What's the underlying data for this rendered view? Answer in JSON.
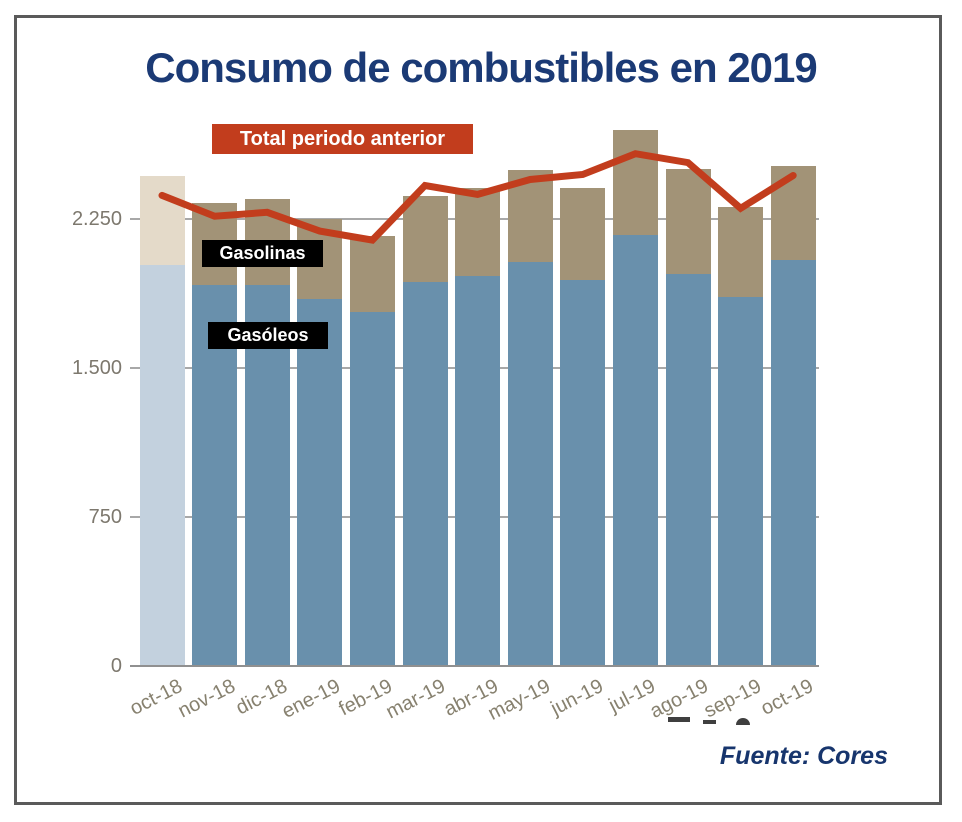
{
  "title": "Consumo de combustibles en 2019",
  "source": "Fuente: Cores",
  "legend": {
    "line_label": "Total periodo anterior",
    "gasolinas_label": "Gasolinas",
    "gasoleos_label": "Gasóleos"
  },
  "colors": {
    "title_text": "#1b3a75",
    "source_text": "#17356d",
    "legend_line_bg": "#c23d1d",
    "tag_bg": "#000000",
    "tag_text": "#ffffff",
    "gridline": "#a8a8a8",
    "baseline": "#909090",
    "y_label_text": "#7d786e",
    "x_label_text": "#87816f",
    "gasoleos_bar": "#6990ac",
    "gasolinas_bar": "#a29377",
    "gasoleos_bar_first": "#c3d1de",
    "gasolinas_bar_first": "#e4dac9",
    "line": "#c23d1d"
  },
  "chart_data": {
    "type": "bar",
    "subtype": "stacked-bars-with-line",
    "title": "Consumo de combustibles en 2019",
    "xlabel": "",
    "ylabel": "",
    "ylim": [
      0,
      2800
    ],
    "grid": "horizontal",
    "grid_values": [
      750,
      1500,
      2250
    ],
    "y_ticks": [
      {
        "value": 0,
        "label": "0"
      },
      {
        "value": 750,
        "label": "750"
      },
      {
        "value": 1500,
        "label": "1.500"
      },
      {
        "value": 2250,
        "label": "2.250"
      }
    ],
    "categories": [
      "oct-18",
      "nov-18",
      "dic-18",
      "ene-19",
      "feb-19",
      "mar-19",
      "abr-19",
      "may-19",
      "jun-19",
      "jul-19",
      "ago-19",
      "sep-19",
      "oct-19"
    ],
    "highlighted_category": "oct-18",
    "legend_position": "top-left",
    "series": [
      {
        "name": "Gasóleos",
        "type": "bar-stack-bottom",
        "values": [
          2020,
          1920,
          1920,
          1850,
          1785,
          1935,
          1965,
          2035,
          1945,
          2170,
          1975,
          1860,
          2045
        ]
      },
      {
        "name": "Gasolinas",
        "type": "bar-stack-top",
        "values": [
          450,
          410,
          430,
          400,
          380,
          430,
          440,
          465,
          460,
          530,
          530,
          450,
          475
        ]
      },
      {
        "name": "Total periodo anterior",
        "type": "line",
        "values": [
          2370,
          2265,
          2285,
          2190,
          2145,
          2420,
          2375,
          2450,
          2475,
          2580,
          2535,
          2305,
          2470
        ]
      }
    ]
  }
}
